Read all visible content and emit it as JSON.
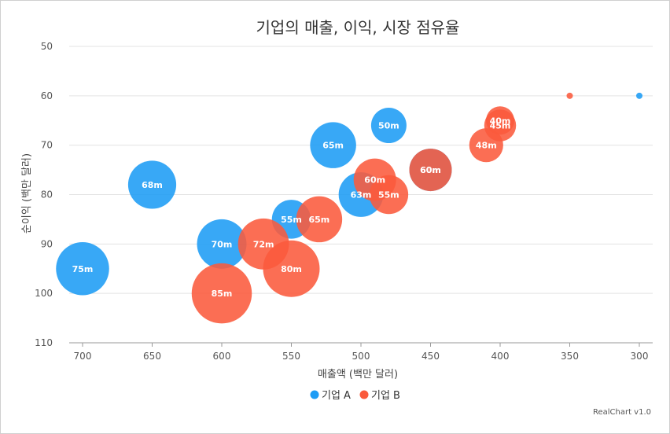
{
  "chart_data": {
    "type": "scatter",
    "subtype": "bubble",
    "title": "기업의 매출, 이익, 시장 점유율",
    "xlabel": "매출액 (백만 달러)",
    "ylabel": "순이익 (백만 달러)",
    "xlim": [
      700,
      300
    ],
    "ylim": [
      50,
      110
    ],
    "x_reversed": true,
    "y_reversed": true,
    "x_ticks": [
      700,
      650,
      600,
      550,
      500,
      450,
      400,
      350,
      300
    ],
    "y_ticks": [
      50,
      60,
      70,
      80,
      90,
      100,
      110
    ],
    "grid": "horizontal",
    "legend_position": "bottom",
    "series": [
      {
        "name": "기업 A",
        "color": "#1c9cf5",
        "points": [
          {
            "x": 700,
            "y": 95,
            "size": 75,
            "label": "75m"
          },
          {
            "x": 650,
            "y": 78,
            "size": 68,
            "label": "68m"
          },
          {
            "x": 600,
            "y": 90,
            "size": 70,
            "label": "70m"
          },
          {
            "x": 550,
            "y": 85,
            "size": 55,
            "label": "55m"
          },
          {
            "x": 520,
            "y": 70,
            "size": 65,
            "label": "65m"
          },
          {
            "x": 500,
            "y": 80,
            "size": 63,
            "label": "63m"
          },
          {
            "x": 480,
            "y": 66,
            "size": 50,
            "label": "50m"
          },
          {
            "x": 450,
            "y": 75,
            "size": 60,
            "label": "60m"
          },
          {
            "x": 300,
            "y": 60,
            "size": 5,
            "label": ""
          }
        ]
      },
      {
        "name": "기업 B",
        "color": "#fa5a3c",
        "points": [
          {
            "x": 600,
            "y": 100,
            "size": 85,
            "label": "85m"
          },
          {
            "x": 570,
            "y": 90,
            "size": 72,
            "label": "72m"
          },
          {
            "x": 550,
            "y": 95,
            "size": 80,
            "label": "80m"
          },
          {
            "x": 530,
            "y": 85,
            "size": 65,
            "label": "65m"
          },
          {
            "x": 490,
            "y": 77,
            "size": 60,
            "label": "60m"
          },
          {
            "x": 480,
            "y": 80,
            "size": 55,
            "label": "55m"
          },
          {
            "x": 450,
            "y": 75,
            "size": 60,
            "label": "60m"
          },
          {
            "x": 410,
            "y": 70,
            "size": 48,
            "label": "48m"
          },
          {
            "x": 400,
            "y": 66,
            "size": 45,
            "label": "45m"
          },
          {
            "x": 400,
            "y": 65,
            "size": 40,
            "label": "40m"
          },
          {
            "x": 350,
            "y": 60,
            "size": 5,
            "label": ""
          }
        ]
      }
    ]
  },
  "credit": "RealChart v1.0"
}
